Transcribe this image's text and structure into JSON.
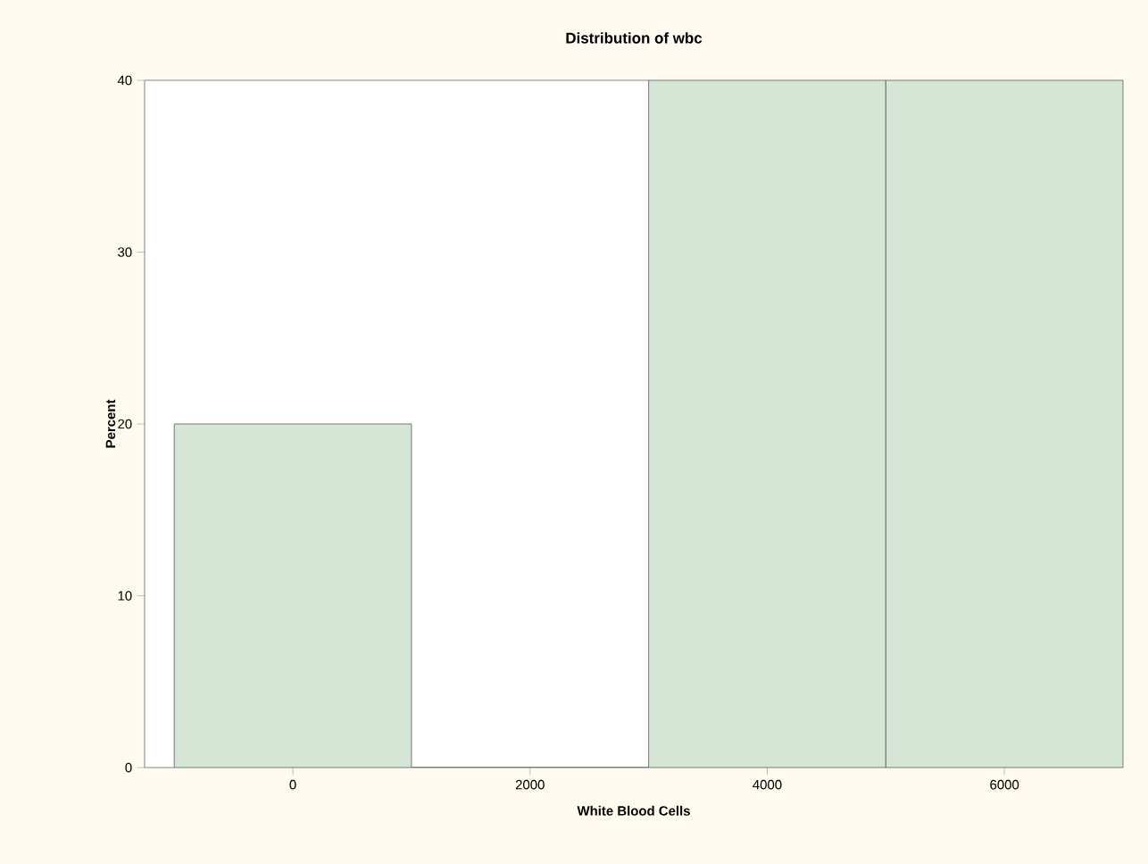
{
  "chart_data": {
    "type": "histogram",
    "title": "Distribution of wbc",
    "xlabel": "White Blood Cells",
    "ylabel": "Percent",
    "bins": [
      -1000,
      1000,
      3000,
      5000,
      7000
    ],
    "values": [
      20,
      0,
      40,
      40
    ],
    "color": "#d5e6d6",
    "xlim": [
      -1250,
      7000
    ],
    "ylim": [
      0,
      40
    ],
    "xticks": [
      0,
      2000,
      4000,
      6000
    ],
    "yticks": [
      0,
      10,
      20,
      30,
      40
    ],
    "grid": false
  }
}
